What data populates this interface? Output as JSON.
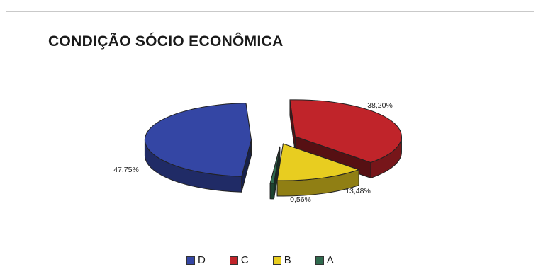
{
  "chart_data": {
    "type": "pie",
    "title": "CONDIÇÃO SÓCIO ECONÔMICA",
    "slices": [
      {
        "label": "D",
        "value": 47.75,
        "value_label": "47,75%",
        "color": "#3446a4"
      },
      {
        "label": "C",
        "value": 38.2,
        "value_label": "38,20%",
        "color": "#c0242a"
      },
      {
        "label": "B",
        "value": 13.48,
        "value_label": "13,48%",
        "color": "#e8cd20"
      },
      {
        "label": "A",
        "value": 0.56,
        "value_label": "0,56%",
        "color": "#2f6a4e"
      }
    ],
    "legend_position": "bottom",
    "style": "3d-exploded"
  }
}
